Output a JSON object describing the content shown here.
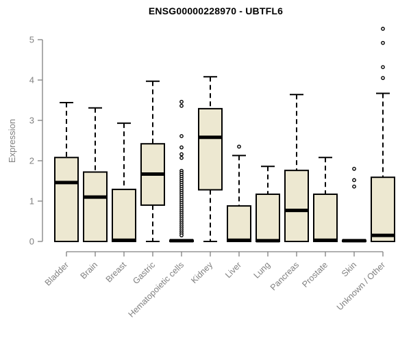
{
  "title": "ENSG00000228970 - UBTFL6",
  "chart_data": {
    "type": "boxplot",
    "title": "ENSG00000228970 - UBTFL6",
    "xlabel": "",
    "ylabel": "Expression",
    "ylim": [
      0,
      5
    ],
    "yticks": [
      0,
      1,
      2,
      3,
      4,
      5
    ],
    "grid": false,
    "legend": "none",
    "categories": [
      "Bladder",
      "Brain",
      "Breast",
      "Gastric",
      "Hematopoietic cells",
      "Kidney",
      "Liver",
      "Lung",
      "Pancreas",
      "Prostate",
      "Skin",
      "Unknown / Other"
    ],
    "boxes": [
      {
        "category": "Bladder",
        "whisker_low": 0,
        "q1": 0,
        "median": 1.46,
        "q3": 2.08,
        "whisker_high": 3.44,
        "outliers": []
      },
      {
        "category": "Brain",
        "whisker_low": 0,
        "q1": 0,
        "median": 1.1,
        "q3": 1.72,
        "whisker_high": 3.31,
        "outliers": []
      },
      {
        "category": "Breast",
        "whisker_low": 0,
        "q1": 0,
        "median": 0.03,
        "q3": 1.29,
        "whisker_high": 2.93,
        "outliers": []
      },
      {
        "category": "Gastric",
        "whisker_low": 0,
        "q1": 0.9,
        "median": 1.67,
        "q3": 2.42,
        "whisker_high": 3.97,
        "outliers": []
      },
      {
        "category": "Hematopoietic cells",
        "whisker_low": 0,
        "q1": 0,
        "median": 0.02,
        "q3": 0.03,
        "whisker_high": 0.03,
        "outliers": [
          3.46,
          3.36,
          2.61,
          2.33,
          2.16,
          2.07,
          1.75,
          1.7,
          1.65,
          1.6,
          1.55,
          1.5,
          1.45,
          1.4,
          1.35,
          1.3,
          1.25,
          1.2,
          1.15,
          1.1,
          1.05,
          1.0,
          0.95,
          0.9,
          0.85,
          0.8,
          0.75,
          0.7,
          0.65,
          0.6,
          0.55,
          0.5,
          0.45,
          0.4,
          0.35,
          0.3,
          0.25,
          0.2,
          0.15
        ]
      },
      {
        "category": "Kidney",
        "whisker_low": 0,
        "q1": 1.28,
        "median": 2.58,
        "q3": 3.29,
        "whisker_high": 4.08,
        "outliers": []
      },
      {
        "category": "Liver",
        "whisker_low": 0,
        "q1": 0,
        "median": 0.03,
        "q3": 0.88,
        "whisker_high": 2.13,
        "outliers": [
          2.35
        ]
      },
      {
        "category": "Lung",
        "whisker_low": 0,
        "q1": 0,
        "median": 0.02,
        "q3": 1.17,
        "whisker_high": 1.86,
        "outliers": []
      },
      {
        "category": "Pancreas",
        "whisker_low": 0,
        "q1": 0,
        "median": 0.77,
        "q3": 1.76,
        "whisker_high": 3.64,
        "outliers": []
      },
      {
        "category": "Prostate",
        "whisker_low": 0,
        "q1": 0,
        "median": 0.03,
        "q3": 1.17,
        "whisker_high": 2.08,
        "outliers": []
      },
      {
        "category": "Skin",
        "whisker_low": 0,
        "q1": 0,
        "median": 0.02,
        "q3": 0.03,
        "whisker_high": 0.03,
        "outliers": [
          1.8,
          1.52,
          1.36
        ]
      },
      {
        "category": "Unknown / Other",
        "whisker_low": 0,
        "q1": 0,
        "median": 0.15,
        "q3": 1.59,
        "whisker_high": 3.67,
        "outliers": [
          5.27,
          4.92,
          4.32,
          4.05
        ]
      }
    ],
    "colors": {
      "box_fill": "#EDE8D1",
      "box_border": "#000000",
      "median": "#000000",
      "whisker": "#000000",
      "outlier": "#000000",
      "axis": "#808080",
      "tick_label": "#808080",
      "title": "#000000",
      "background": "#FFFFFF"
    }
  }
}
